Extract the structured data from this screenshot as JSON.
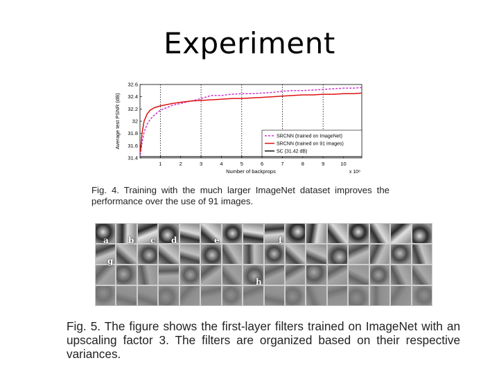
{
  "slide": {
    "title": "Experiment"
  },
  "chart_data": {
    "type": "line",
    "ylabel": "Average test PSNR (dB)",
    "xlabel": "Number of backprops",
    "x_exponent_label": "x 10⁸",
    "xlim": [
      0.0,
      10.9
    ],
    "ylim": [
      31.4,
      32.6
    ],
    "x_ticks": [
      1,
      2,
      3,
      4,
      5,
      6,
      7,
      8,
      9,
      10
    ],
    "y_ticks": [
      {
        "value": 31.4,
        "label": "31.4"
      },
      {
        "value": 31.6,
        "label": "31.6"
      },
      {
        "value": 31.8,
        "label": "31.8"
      },
      {
        "value": 32.0,
        "label": "32"
      },
      {
        "value": 32.2,
        "label": "32.2"
      },
      {
        "value": 32.4,
        "label": "32.4"
      },
      {
        "value": 32.6,
        "label": "32.6"
      }
    ],
    "vertical_gridlines_at": [
      1,
      3,
      5,
      7,
      9
    ],
    "legend_position": "bottom-right",
    "series": [
      {
        "name": "SRCNN (trained on ImageNet)",
        "color": "#cc33cc",
        "style": "dashed",
        "x": [
          0.02,
          0.1,
          0.2,
          0.35,
          0.5,
          0.7,
          1.0,
          1.3,
          1.6,
          2.0,
          2.5,
          3.0,
          3.5,
          4.0,
          4.5,
          5.0,
          5.5,
          6.0,
          6.5,
          7.0,
          7.5,
          8.0,
          8.5,
          9.0,
          9.5,
          10.0,
          10.5,
          10.9
        ],
        "y": [
          31.45,
          31.65,
          31.82,
          31.95,
          32.03,
          32.1,
          32.18,
          32.22,
          32.26,
          32.29,
          32.33,
          32.37,
          32.42,
          32.42,
          32.44,
          32.45,
          32.45,
          32.46,
          32.47,
          32.49,
          32.5,
          32.5,
          32.51,
          32.52,
          32.53,
          32.54,
          32.54,
          32.55
        ]
      },
      {
        "name": "SRCNN (trained on 91 images)",
        "color": "#dd1111",
        "style": "solid",
        "x": [
          0.02,
          0.1,
          0.2,
          0.35,
          0.5,
          0.7,
          1.0,
          1.3,
          1.6,
          2.0,
          2.5,
          3.0,
          3.5,
          4.0,
          4.5,
          5.0,
          5.5,
          6.0,
          6.5,
          7.0,
          7.5,
          8.0,
          8.5,
          9.0,
          9.5,
          10.0,
          10.5,
          10.9
        ],
        "y": [
          31.5,
          31.8,
          32.0,
          32.12,
          32.18,
          32.22,
          32.25,
          32.27,
          32.29,
          32.31,
          32.33,
          32.34,
          32.35,
          32.36,
          32.37,
          32.37,
          32.38,
          32.39,
          32.4,
          32.41,
          32.42,
          32.43,
          32.43,
          32.44,
          32.44,
          32.45,
          32.45,
          32.46
        ]
      },
      {
        "name": "SC (31.42 dB)",
        "color": "#111111",
        "style": "solid",
        "x": [
          0.0,
          10.9
        ],
        "y": [
          31.42,
          31.42
        ]
      }
    ]
  },
  "captions": {
    "fig4": "Fig. 4. Training with the much larger ImageNet dataset improves the performance over the use of 91 images.",
    "fig5": "Fig. 5. The figure shows the first-layer filters trained on ImageNet with an upscaling factor 3. The filters are organized based on their respective variances."
  },
  "filter_labels": [
    "a",
    "b",
    "c",
    "d",
    "e",
    "f",
    "g",
    "h"
  ]
}
